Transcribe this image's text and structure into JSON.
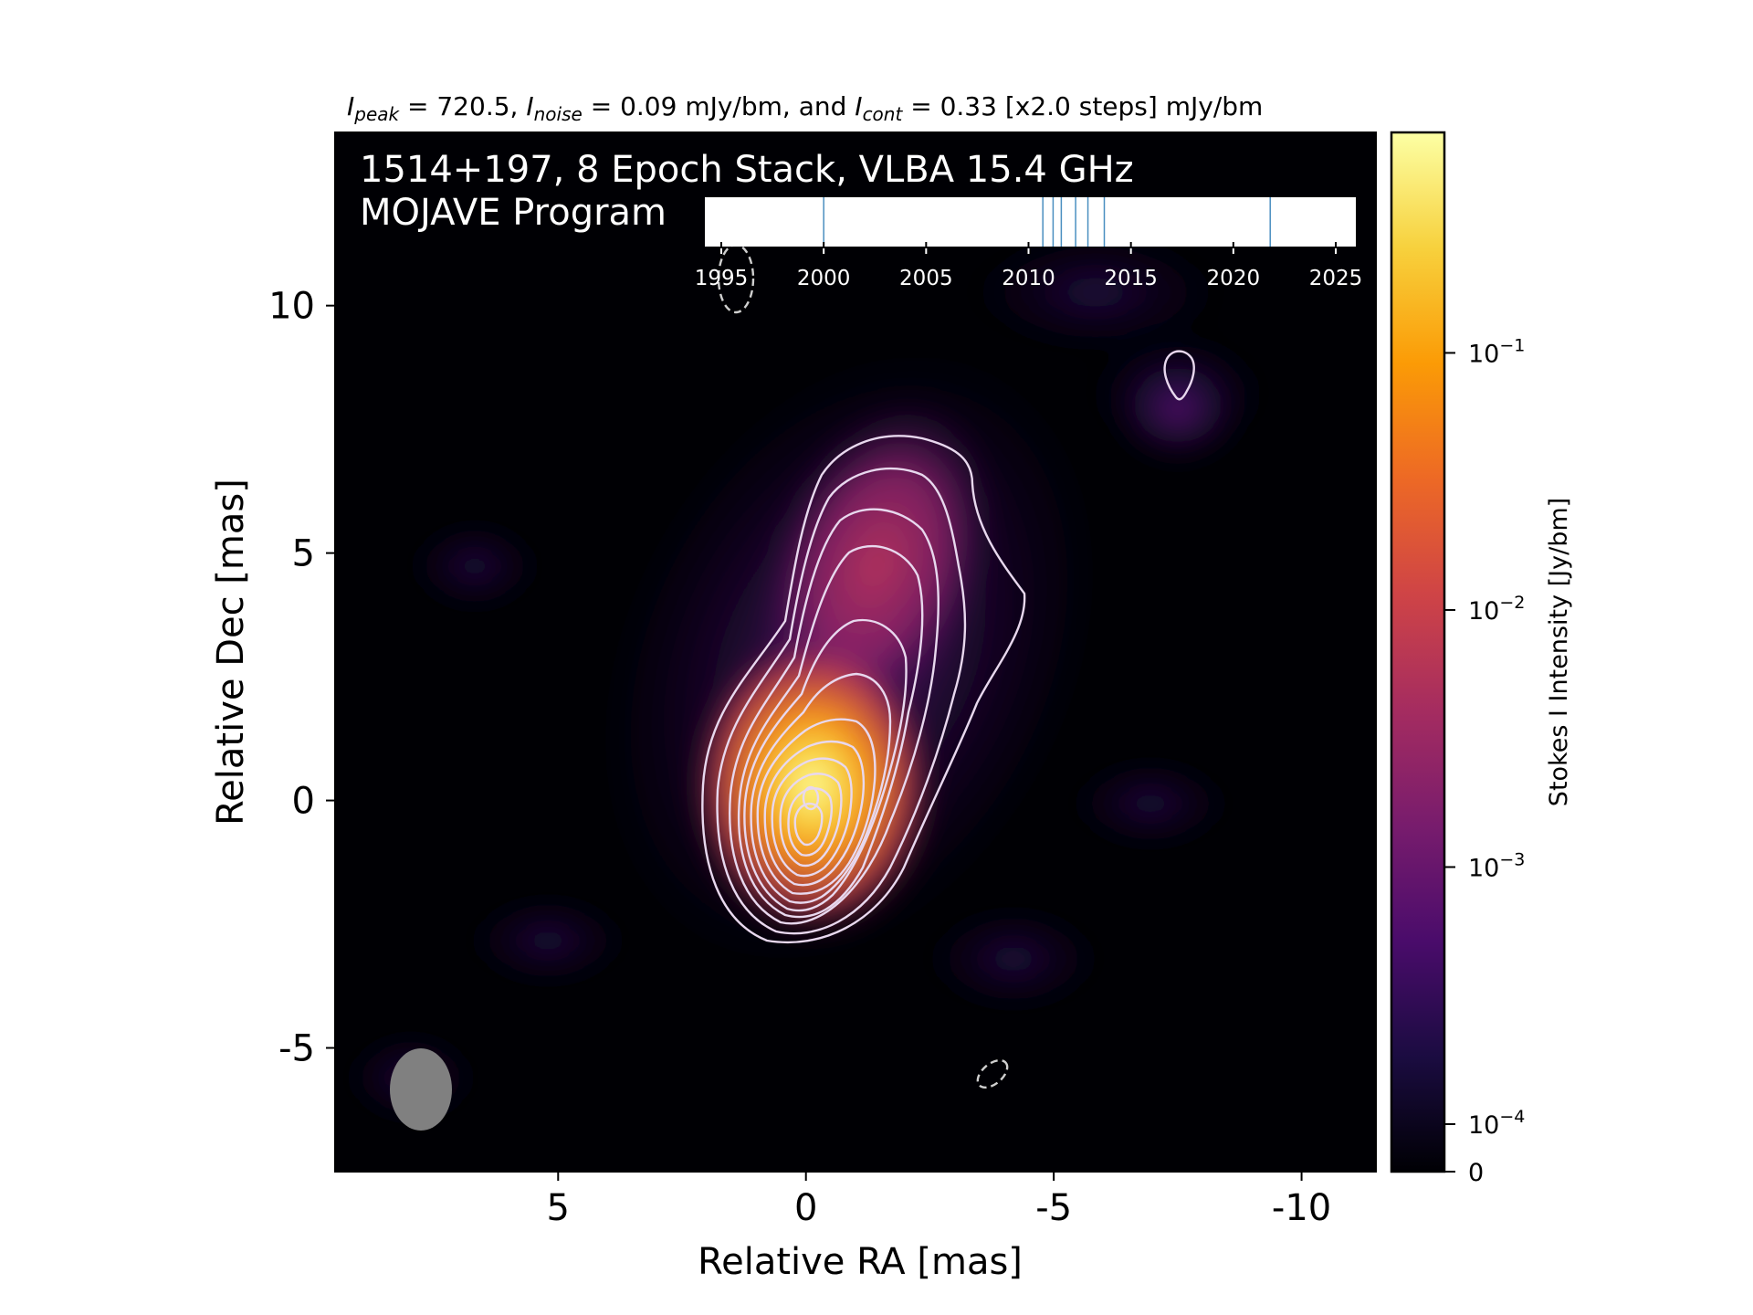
{
  "header": {
    "stats_parts": [
      "I",
      "peak",
      " = 720.5, ",
      "I",
      "noise",
      " = 0.09 mJy/bm, and ",
      "I",
      "cont",
      " = 0.33 [x2.0 steps] mJy/bm"
    ]
  },
  "overlay": {
    "line1": "1514+197, 8 Epoch Stack, VLBA 15.4 GHz",
    "line2": "MOJAVE Program"
  },
  "colorbar": {
    "label": "Stokes I Intensity [Jy/bm]",
    "ticks": [
      {
        "text": "10",
        "exp": "−1",
        "value": 0.1
      },
      {
        "text": "10",
        "exp": "−2",
        "value": 0.01
      },
      {
        "text": "10",
        "exp": "−3",
        "value": 0.001
      },
      {
        "text": "10",
        "exp": "−4",
        "value": 0.0001
      },
      {
        "text": "0",
        "exp": "",
        "value": 0
      }
    ],
    "colormap": [
      "#000004",
      "#1b0c41",
      "#4a0c6b",
      "#781c6d",
      "#a52c60",
      "#cf4446",
      "#ed6925",
      "#fb9b06",
      "#f7d13d",
      "#fcffa4"
    ]
  },
  "epoch_timeline": {
    "tick_labels": [
      "1995",
      "2000",
      "2005",
      "2010",
      "2015",
      "2020",
      "2025"
    ],
    "range": [
      1994,
      2026
    ],
    "epoch_years": [
      2000.0,
      2010.7,
      2011.2,
      2011.6,
      2012.3,
      2012.9,
      2013.7,
      2021.8
    ],
    "line_color": "#4a8fc0"
  },
  "chart_data": {
    "type": "heatmap",
    "title": "I_peak = 720.5, I_noise = 0.09 mJy/bm, and I_cont = 0.33 [x2.0 steps] mJy/bm",
    "xlabel": "Relative RA [mas]",
    "ylabel": "Relative Dec [mas]",
    "xlim": [
      9.5,
      -11.5
    ],
    "ylim": [
      -7.5,
      13.5
    ],
    "x_ticks": [
      5,
      0,
      -5,
      -10
    ],
    "x_tick_labels": [
      "5",
      "0",
      "-5",
      "-10"
    ],
    "y_ticks": [
      10,
      5,
      0,
      -5
    ],
    "y_tick_labels": [
      "10",
      "5",
      "0",
      "-5"
    ],
    "peak_intensity_mJy_per_beam": 720.5,
    "noise_mJy_per_beam": 0.09,
    "lowest_contour_mJy_per_beam": 0.33,
    "contour_step_factor": 2.0,
    "core_position_mas": [
      0,
      0
    ],
    "beam": {
      "center": [
        7.9,
        -5.85
      ],
      "major_mas": 1.65,
      "minor_mas": 1.2,
      "pa_deg": 0,
      "color": "#808080"
    },
    "jet_direction": "north-west",
    "jet_extent_dec_mas": 7.2,
    "epochs": 8,
    "frequency_GHz": 15.4,
    "source": "1514+197"
  }
}
